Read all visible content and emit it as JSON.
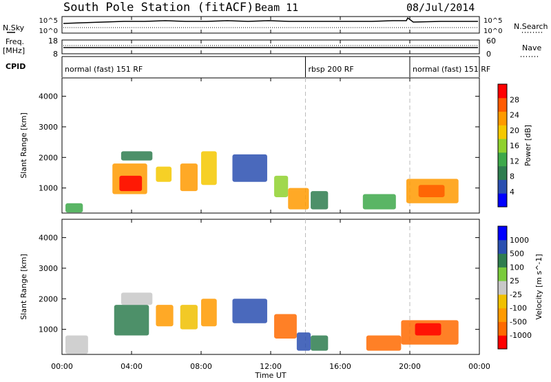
{
  "header": {
    "title": "South Pole Station (fitACF)",
    "beam": "Beam 11",
    "date": "08/Jul/2014"
  },
  "params_panel": {
    "left_top_label": "N.Sky",
    "left_sky_ticks": [
      "10^5",
      "10^0"
    ],
    "right_sky_ticks": [
      "10^5",
      "10^0"
    ],
    "right_top_label": "N.Search",
    "freq_label_1": "Freq.",
    "freq_label_2": "[MHz]",
    "freq_ticks": [
      "18",
      "8"
    ],
    "nave_ticks": [
      "60",
      "0"
    ],
    "nave_label": "Nave",
    "cpid_label": "CPID"
  },
  "cpid_segments": [
    {
      "label": "normal (fast) 151 RF",
      "start_hour": 0,
      "end_hour": 14
    },
    {
      "label": "rbsp 200 RF",
      "start_hour": 14,
      "end_hour": 20
    },
    {
      "label": "normal (fast) 151 RF",
      "start_hour": 20,
      "end_hour": 24
    }
  ],
  "x_axis": {
    "label": "Time UT",
    "range_hours": [
      0,
      24
    ],
    "tick_labels": [
      "00:00",
      "04:00",
      "08:00",
      "12:00",
      "16:00",
      "20:00",
      "00:00"
    ],
    "tick_hours": [
      0,
      4,
      8,
      12,
      16,
      20,
      24
    ]
  },
  "colors": {
    "power_scale": [
      "#0000ff",
      "#2a4fb0",
      "#2e7d4f",
      "#3da84a",
      "#8fd12e",
      "#f5c800",
      "#ff9a00",
      "#ff5a00",
      "#ff0000"
    ],
    "velocity_scale": [
      "#ff0000",
      "#ff6a00",
      "#ff9a00",
      "#f0c000",
      "#c8c8c8",
      "#7acb3c",
      "#2e7d4f",
      "#2a4fb0",
      "#0000ff"
    ]
  },
  "chart_data": [
    {
      "type": "heatmap",
      "name": "power",
      "ylabel": "Slant Range [km]",
      "ylim": [
        180,
        4600
      ],
      "y_ticks": [
        "1000",
        "2000",
        "3000",
        "4000"
      ],
      "y_tick_values": [
        1000,
        2000,
        3000,
        4000
      ],
      "colorbar_label": "Power [dB]",
      "colorbar_ticks": [
        "4",
        "8",
        "12",
        "16",
        "20",
        "24",
        "28"
      ],
      "colorbar_range": [
        0,
        30
      ],
      "patches": [
        {
          "t0": 0.2,
          "t1": 1.2,
          "r0": 200,
          "r1": 500,
          "level": 12
        },
        {
          "t0": 2.9,
          "t1": 4.9,
          "r0": 800,
          "r1": 1800,
          "level": 22
        },
        {
          "t0": 3.3,
          "t1": 4.6,
          "r0": 900,
          "r1": 1400,
          "level": 28
        },
        {
          "t0": 3.4,
          "t1": 5.2,
          "r0": 1900,
          "r1": 2200,
          "level": 8
        },
        {
          "t0": 5.4,
          "t1": 6.3,
          "r0": 1200,
          "r1": 1700,
          "level": 18
        },
        {
          "t0": 6.8,
          "t1": 7.8,
          "r0": 900,
          "r1": 1800,
          "level": 22
        },
        {
          "t0": 8.0,
          "t1": 8.9,
          "r0": 1100,
          "r1": 2200,
          "level": 18
        },
        {
          "t0": 9.8,
          "t1": 11.8,
          "r0": 1200,
          "r1": 2100,
          "level": 5
        },
        {
          "t0": 12.2,
          "t1": 13.0,
          "r0": 700,
          "r1": 1400,
          "level": 14
        },
        {
          "t0": 13.0,
          "t1": 14.2,
          "r0": 300,
          "r1": 1000,
          "level": 22
        },
        {
          "t0": 14.3,
          "t1": 15.3,
          "r0": 300,
          "r1": 900,
          "level": 8
        },
        {
          "t0": 17.3,
          "t1": 19.2,
          "r0": 300,
          "r1": 800,
          "level": 10
        },
        {
          "t0": 19.8,
          "t1": 22.8,
          "r0": 500,
          "r1": 1300,
          "level": 22
        },
        {
          "t0": 20.5,
          "t1": 22.0,
          "r0": 700,
          "r1": 1100,
          "level": 26
        }
      ]
    },
    {
      "type": "heatmap",
      "name": "velocity",
      "ylabel": "Slant Range [km]",
      "ylim": [
        180,
        4600
      ],
      "y_ticks": [
        "1000",
        "2000",
        "3000",
        "4000"
      ],
      "y_tick_values": [
        1000,
        2000,
        3000,
        4000
      ],
      "colorbar_label": "Velocity [m s^-1]",
      "colorbar_ticks": [
        "1000",
        "500",
        "100",
        "25",
        "-25",
        "-100",
        "-500",
        "-1000"
      ],
      "patches": [
        {
          "t0": 0.2,
          "t1": 1.5,
          "r0": 200,
          "r1": 800,
          "level": 4
        },
        {
          "t0": 3.0,
          "t1": 5.0,
          "r0": 800,
          "r1": 1800,
          "level": 6
        },
        {
          "t0": 3.4,
          "t1": 5.2,
          "r0": 1800,
          "r1": 2200,
          "level": 4
        },
        {
          "t0": 5.4,
          "t1": 6.4,
          "r0": 1100,
          "r1": 1800,
          "level": 2
        },
        {
          "t0": 6.8,
          "t1": 7.8,
          "r0": 1000,
          "r1": 1800,
          "level": 3
        },
        {
          "t0": 8.0,
          "t1": 8.9,
          "r0": 1100,
          "r1": 2000,
          "level": 2
        },
        {
          "t0": 9.8,
          "t1": 11.8,
          "r0": 1200,
          "r1": 2000,
          "level": 7
        },
        {
          "t0": 12.2,
          "t1": 13.5,
          "r0": 700,
          "r1": 1500,
          "level": 1
        },
        {
          "t0": 13.5,
          "t1": 14.3,
          "r0": 300,
          "r1": 900,
          "level": 7
        },
        {
          "t0": 14.3,
          "t1": 15.3,
          "r0": 300,
          "r1": 800,
          "level": 6
        },
        {
          "t0": 17.5,
          "t1": 19.5,
          "r0": 300,
          "r1": 800,
          "level": 1
        },
        {
          "t0": 19.5,
          "t1": 22.8,
          "r0": 500,
          "r1": 1300,
          "level": 1
        },
        {
          "t0": 20.3,
          "t1": 21.8,
          "r0": 800,
          "r1": 1200,
          "level": 0
        }
      ]
    }
  ]
}
